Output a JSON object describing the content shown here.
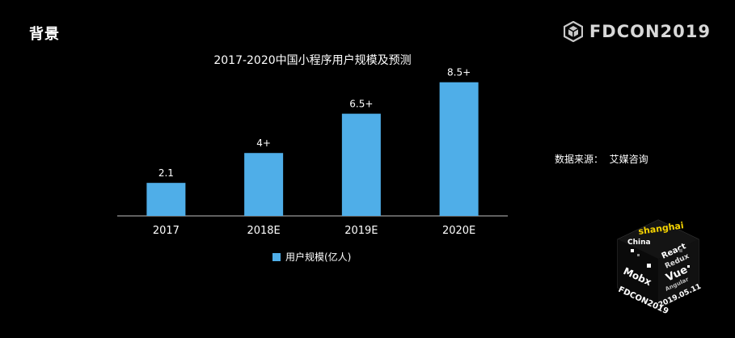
{
  "slide": {
    "title": "背景",
    "brand": "FDCON2019",
    "source": "数据来源：  艾媒咨询",
    "brand_color": "#c8c8c8"
  },
  "cube": {
    "words": [
      "shanghai",
      "China",
      "React",
      "Redux",
      "Vue",
      "Mobx",
      "Angular"
    ],
    "brand": "FDCON2019",
    "date": "2019.05.11",
    "accent": "#f5d300"
  },
  "chart_data": {
    "type": "bar",
    "title": "2017-2020中国小程序用户规模及预测",
    "categories": [
      "2017",
      "2018E",
      "2019E",
      "2020E"
    ],
    "series": [
      {
        "name": "用户规模(亿人)",
        "values": [
          2.1,
          4,
          6.5,
          8.5
        ],
        "labels": [
          "2.1",
          "4+",
          "6.5+",
          "8.5+"
        ],
        "color": "#4faee8"
      }
    ],
    "xlabel": "",
    "ylabel": "",
    "ylim": [
      0,
      9
    ],
    "grid": false,
    "legend": "bottom"
  }
}
